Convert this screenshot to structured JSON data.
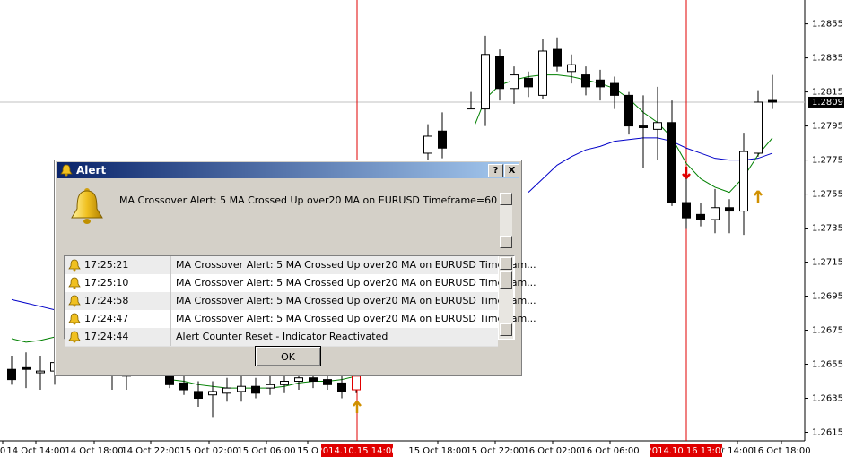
{
  "chart": {
    "symbol_ylim": [
      1.261,
      1.2869
    ],
    "price_ticks": [
      1.2855,
      1.2835,
      1.2815,
      1.2795,
      1.2775,
      1.2755,
      1.2735,
      1.2715,
      1.2695,
      1.2675,
      1.2655,
      1.2635,
      1.2615
    ],
    "current_price": 1.2809,
    "time_labels": [
      "0",
      "14 Oct 14:00",
      "14 Oct 18:00",
      "14 Oct 22:00",
      "15 Oct 02:00",
      "15 Oct 06:00",
      "15 O",
      "15 Oct 18:00",
      "15 Oct 22:00",
      "16 Oct 02:00",
      "16 Oct 06:00",
      "t 14:00",
      "16 Oct 18:00"
    ],
    "vlines": [
      "2014.10.15 14:00",
      "2014.10.16 13:00"
    ],
    "candles": [
      {
        "open": 1.2652,
        "high": 1.266,
        "low": 1.2643,
        "close": 1.2646
      },
      {
        "open": 1.2653,
        "high": 1.2662,
        "low": 1.2641,
        "close": 1.2652
      },
      {
        "open": 1.265,
        "high": 1.266,
        "low": 1.264,
        "close": 1.2651
      },
      {
        "open": 1.2651,
        "high": 1.2663,
        "low": 1.2643,
        "close": 1.2656
      },
      null,
      null,
      null,
      {
        "open": 1.2653,
        "high": 1.2658,
        "low": 1.264,
        "close": 1.2652
      },
      {
        "open": 1.2648,
        "high": 1.2655,
        "low": 1.264,
        "close": 1.2649
      },
      null,
      null,
      {
        "open": 1.2648,
        "high": 1.2652,
        "low": 1.2641,
        "close": 1.2643
      },
      {
        "open": 1.2644,
        "high": 1.2649,
        "low": 1.2637,
        "close": 1.264
      },
      {
        "open": 1.2639,
        "high": 1.2645,
        "low": 1.263,
        "close": 1.2635
      },
      {
        "open": 1.2637,
        "high": 1.2645,
        "low": 1.2624,
        "close": 1.2639
      },
      {
        "open": 1.2638,
        "high": 1.2647,
        "low": 1.2633,
        "close": 1.2641
      },
      {
        "open": 1.2639,
        "high": 1.2651,
        "low": 1.2633,
        "close": 1.2642
      },
      {
        "open": 1.2642,
        "high": 1.2647,
        "low": 1.2635,
        "close": 1.2638
      },
      {
        "open": 1.2641,
        "high": 1.2651,
        "low": 1.2637,
        "close": 1.2643
      },
      {
        "open": 1.2643,
        "high": 1.2651,
        "low": 1.2638,
        "close": 1.2645
      },
      {
        "open": 1.2645,
        "high": 1.2652,
        "low": 1.264,
        "close": 1.2647
      },
      {
        "open": 1.2647,
        "high": 1.2653,
        "low": 1.2641,
        "close": 1.2645
      },
      {
        "open": 1.2646,
        "high": 1.265,
        "low": 1.264,
        "close": 1.2643
      },
      {
        "open": 1.2644,
        "high": 1.2649,
        "low": 1.2635,
        "close": 1.2639
      },
      {
        "open": 1.264,
        "high": 1.2652,
        "low": 1.2638,
        "close": 1.2648
      },
      null,
      null,
      null,
      null,
      {
        "open": 1.2779,
        "high": 1.2796,
        "low": 1.2775,
        "close": 1.2789
      },
      {
        "open": 1.2792,
        "high": 1.2803,
        "low": 1.2776,
        "close": 1.2782
      },
      null,
      {
        "open": 1.277,
        "high": 1.2815,
        "low": 1.2765,
        "close": 1.2805
      },
      {
        "open": 1.2805,
        "high": 1.2848,
        "low": 1.2795,
        "close": 1.2837
      },
      {
        "open": 1.2836,
        "high": 1.284,
        "low": 1.281,
        "close": 1.2817
      },
      {
        "open": 1.2817,
        "high": 1.283,
        "low": 1.2808,
        "close": 1.2825
      },
      {
        "open": 1.2823,
        "high": 1.2827,
        "low": 1.2812,
        "close": 1.2818
      },
      {
        "open": 1.2813,
        "high": 1.2846,
        "low": 1.2811,
        "close": 1.2839
      },
      {
        "open": 1.284,
        "high": 1.2847,
        "low": 1.2827,
        "close": 1.283
      },
      {
        "open": 1.2827,
        "high": 1.2837,
        "low": 1.282,
        "close": 1.2831
      },
      {
        "open": 1.2825,
        "high": 1.283,
        "low": 1.2813,
        "close": 1.2818
      },
      {
        "open": 1.2822,
        "high": 1.2828,
        "low": 1.281,
        "close": 1.2818
      },
      {
        "open": 1.282,
        "high": 1.2824,
        "low": 1.2805,
        "close": 1.2813
      },
      {
        "open": 1.2813,
        "high": 1.2815,
        "low": 1.279,
        "close": 1.2795
      },
      {
        "open": 1.2795,
        "high": 1.2813,
        "low": 1.277,
        "close": 1.2794
      },
      {
        "open": 1.2793,
        "high": 1.2818,
        "low": 1.2775,
        "close": 1.2797
      },
      {
        "open": 1.2797,
        "high": 1.281,
        "low": 1.2748,
        "close": 1.275
      },
      {
        "open": 1.275,
        "high": 1.277,
        "low": 1.2735,
        "close": 1.2741
      },
      {
        "open": 1.2743,
        "high": 1.275,
        "low": 1.2736,
        "close": 1.274
      },
      {
        "open": 1.274,
        "high": 1.2758,
        "low": 1.2732,
        "close": 1.2747
      },
      {
        "open": 1.2747,
        "high": 1.2752,
        "low": 1.2732,
        "close": 1.2745
      },
      {
        "open": 1.2745,
        "high": 1.2791,
        "low": 1.2731,
        "close": 1.278
      },
      {
        "open": 1.2779,
        "high": 1.2816,
        "low": 1.2777,
        "close": 1.2809
      },
      {
        "open": 1.281,
        "high": 1.2825,
        "low": 1.2805,
        "close": 1.2809
      }
    ],
    "ma5": [
      1.267,
      1.2668,
      1.2669,
      1.2671,
      null,
      null,
      null,
      null,
      null,
      null,
      null,
      1.2646,
      1.2645,
      1.2643,
      1.2642,
      1.2641,
      1.2641,
      1.2641,
      1.2641,
      1.2642,
      1.2644,
      1.2645,
      1.2645,
      1.2646,
      1.2648,
      null,
      null,
      null,
      null,
      null,
      null,
      null,
      1.279,
      1.2811,
      1.2819,
      1.2822,
      1.2824,
      1.2825,
      1.2825,
      1.2824,
      1.2822,
      1.282,
      1.2817,
      1.2811,
      1.2803,
      1.2797,
      1.2788,
      1.2773,
      1.2764,
      1.2759,
      1.2756,
      1.2765,
      1.2778,
      1.2788
    ],
    "ma20": [
      1.2693,
      1.2691,
      1.2689,
      1.2687,
      null,
      null,
      null,
      null,
      null,
      null,
      null,
      null,
      null,
      null,
      null,
      null,
      null,
      null,
      null,
      null,
      null,
      null,
      null,
      null,
      null,
      null,
      null,
      null,
      null,
      null,
      null,
      null,
      null,
      null,
      null,
      null,
      1.2756,
      1.2764,
      1.2772,
      1.2777,
      1.2781,
      1.2783,
      1.2786,
      1.2787,
      1.2788,
      1.2788,
      1.2786,
      1.2782,
      1.2779,
      1.2776,
      1.2775,
      1.2775,
      1.2776,
      1.2779
    ]
  },
  "dialog": {
    "title": "Alert",
    "help": "?",
    "close": "X",
    "message": "MA Crossover Alert: 5 MA Crossed Up over20 MA on EURUSD Timeframe=60",
    "rows": [
      [
        "17:25:21",
        "MA Crossover Alert: 5 MA Crossed Up over20 MA on EURUSD Timefram..."
      ],
      [
        "17:25:10",
        "MA Crossover Alert: 5 MA Crossed Up over20 MA on EURUSD Timefram..."
      ],
      [
        "17:24:58",
        "MA Crossover Alert: 5 MA Crossed Up over20 MA on EURUSD Timefram..."
      ],
      [
        "17:24:47",
        "MA Crossover Alert: 5 MA Crossed Up over20 MA on EURUSD Timefram..."
      ],
      [
        "17:24:44",
        "Alert Counter Reset - Indicator Reactivated"
      ]
    ],
    "ok": "OK"
  }
}
